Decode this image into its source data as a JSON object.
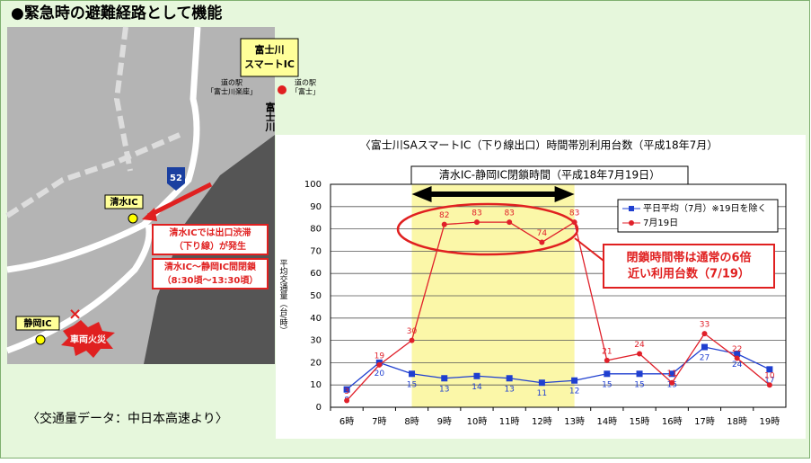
{
  "heading": "●緊急時の避難経路として機能",
  "footer": "〈交通量データ：中日本高速より〉",
  "map": {
    "smart_ic": [
      "富士川",
      "スマートIC"
    ],
    "station_a": [
      "道の駅",
      "「富士川楽座」"
    ],
    "station_b": [
      "道の駅",
      "「富士」"
    ],
    "river": "富士川",
    "route": "52",
    "shimizu": "清水IC",
    "shizuoka": "静岡IC",
    "jam_note": [
      "清水ICでは出口渋滞",
      "（下り線）が発生"
    ],
    "closure_note": [
      "清水IC～静岡IC間閉鎖",
      "（8:30頃～13:30頃）"
    ],
    "fire": "車両火災"
  },
  "chart_data": {
    "type": "line",
    "title": "〈富士川SAスマートIC（下り線出口）時間帯別利用台数（平成18年7月）",
    "closure_label": "清水IC-静岡IC閉鎖時間（平成18年7月19日）",
    "y_label": "平均交通量（台/時）",
    "annotation": [
      "閉鎖時間帯は通常の6倍",
      "近い利用台数（7/19）"
    ],
    "highlight": [
      "8時",
      "13時"
    ],
    "categories": [
      "6時",
      "7時",
      "8時",
      "9時",
      "10時",
      "11時",
      "12時",
      "13時",
      "14時",
      "15時",
      "16時",
      "17時",
      "18時",
      "19時"
    ],
    "series": [
      {
        "name": "平日平均（7月）※19日を除く",
        "color": "#1f3fd0",
        "marker": "square",
        "values": [
          8,
          20,
          15,
          13,
          14,
          13,
          11,
          12,
          15,
          15,
          15,
          27,
          24,
          17
        ]
      },
      {
        "name": "7月19日",
        "color": "#e0202a",
        "marker": "circle",
        "values": [
          3,
          19,
          30,
          82,
          83,
          83,
          74,
          83,
          21,
          24,
          11,
          33,
          22,
          10
        ]
      }
    ],
    "ylim": [
      0,
      100
    ],
    "yticks": [
      0,
      10,
      20,
      30,
      40,
      50,
      60,
      70,
      80,
      90,
      100
    ],
    "grid": true
  }
}
